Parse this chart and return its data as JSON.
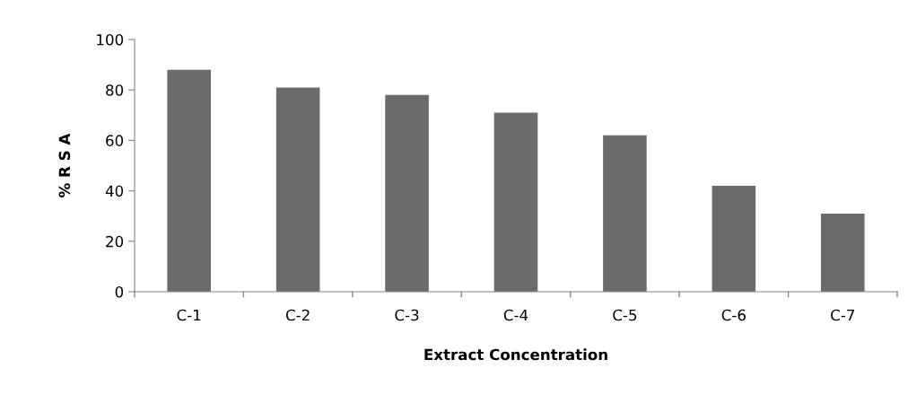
{
  "chart_data": {
    "type": "bar",
    "xlabel": "Extract Concentration",
    "ylabel": "% R S A",
    "categories": [
      "C-1",
      "C-2",
      "C-3",
      "C-4",
      "C-5",
      "C-6",
      "C-7"
    ],
    "values": [
      88,
      81,
      78,
      71,
      62,
      42,
      31
    ],
    "color": "#6b6b6b",
    "ylim": [
      0,
      100
    ],
    "yticks": [
      0,
      20,
      40,
      60,
      80,
      100
    ],
    "grid": false,
    "legend": false
  }
}
